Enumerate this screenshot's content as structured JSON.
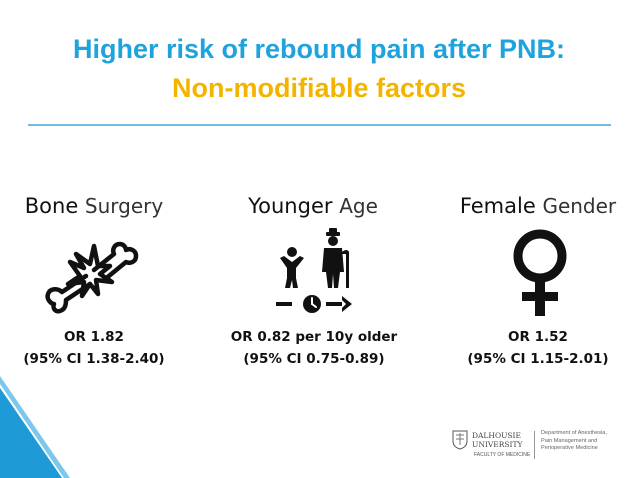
{
  "slide": {
    "title_line1": "Higher risk of rebound pain after PNB:",
    "title_line2": "Non-modifiable factors"
  },
  "factors": [
    {
      "bold": "Bone",
      "light": "Surgery",
      "or": "OR 1.82",
      "ci": "(95% CI 1.38-2.40)",
      "icon": "broken-bone-icon"
    },
    {
      "bold": "Younger",
      "light": "Age",
      "or": "OR 0.82 per 10y older",
      "ci": "(95% CI 0.75-0.89)",
      "icon": "age-timeline-icon"
    },
    {
      "bold": "Female",
      "light": "Gender",
      "or": "OR 1.52",
      "ci": "(95% CI 1.15-2.01)",
      "icon": "female-symbol-icon"
    }
  ],
  "footer": {
    "university_line1": "DALHOUSIE",
    "university_line2": "UNIVERSITY",
    "faculty": "FACULTY OF MEDICINE",
    "dept_line1": "Department of Anesthesia,",
    "dept_line2": "Pain Management and",
    "dept_line3": "Perioperative Medicine"
  },
  "colors": {
    "title_blue": "#1fa3dc",
    "title_yellow": "#f3b400",
    "rule_blue": "#6fbde0",
    "stripe_blue": "#1e9ad6"
  }
}
